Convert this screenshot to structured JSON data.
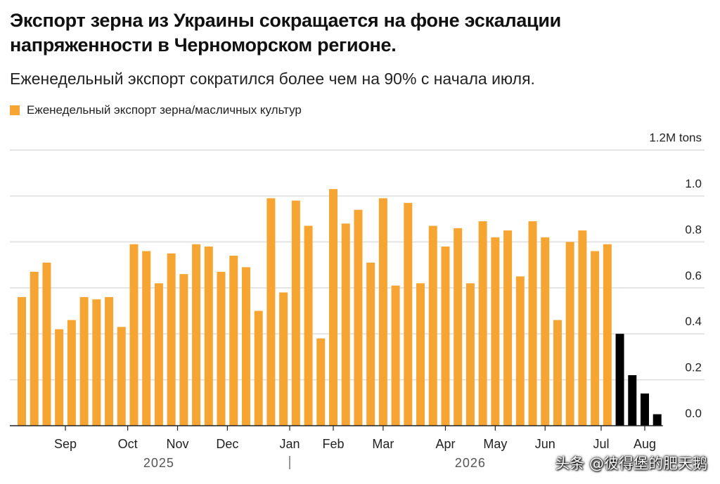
{
  "title": "Экспорт зерна из Украины сокращается на фоне эскалации напряженности в Черноморском регионе.",
  "subtitle": "Еженедельный экспорт сократился более чем на 90% с начала июля.",
  "colors": {
    "orange": "#f7a532",
    "black": "#000000",
    "grid": "#dddddd",
    "axis": "#222222"
  },
  "watermark": "头条 @彼得堡的肥天鹅",
  "chart_data": {
    "type": "bar",
    "legend": [
      {
        "label": "Еженедельный экспорт зерна/масличных культур",
        "color": "#f7a532"
      }
    ],
    "legend_position": "top-left",
    "y_unit_label": "1.2M tons",
    "ylim": [
      0,
      1.2
    ],
    "yticks": [
      {
        "value": 0.2,
        "label": "0.2"
      },
      {
        "value": 0.4,
        "label": "0.4"
      },
      {
        "value": 0.6,
        "label": "0.6"
      },
      {
        "value": 0.8,
        "label": "0.8"
      },
      {
        "value": 1.0,
        "label": "1.0"
      },
      {
        "value": 1.2,
        "label": "1.2M tons"
      }
    ],
    "zero_label": "0.0",
    "grid": true,
    "series": [
      {
        "color": "#f7a532",
        "values": [
          0.56,
          0.67,
          0.71,
          0.42,
          0.46,
          0.56,
          0.55,
          0.56,
          0.43,
          0.79,
          0.76,
          0.62,
          0.75,
          0.66,
          0.79,
          0.78,
          0.67,
          0.74,
          0.69,
          0.5,
          0.99,
          0.58,
          0.98,
          0.87,
          0.38,
          1.03,
          0.88,
          0.94,
          0.71,
          0.99,
          0.61,
          0.97,
          0.62,
          0.87,
          0.78,
          0.86,
          0.62,
          0.89,
          0.82,
          0.85,
          0.65,
          0.89,
          0.82,
          0.46,
          0.8,
          0.85,
          0.76,
          0.79
        ]
      },
      {
        "color": "#000000",
        "values": [
          0.4,
          0.22,
          0.14,
          0.05
        ]
      }
    ],
    "x_month_labels": [
      {
        "label": "Sep",
        "bar_index": 3.5
      },
      {
        "label": "Oct",
        "bar_index": 8.5
      },
      {
        "label": "Nov",
        "bar_index": 12.5
      },
      {
        "label": "Dec",
        "bar_index": 16.5
      },
      {
        "label": "Jan",
        "bar_index": 21.5
      },
      {
        "label": "Feb",
        "bar_index": 25
      },
      {
        "label": "Mar",
        "bar_index": 29
      },
      {
        "label": "Apr",
        "bar_index": 34
      },
      {
        "label": "May",
        "bar_index": 38
      },
      {
        "label": "Jun",
        "bar_index": 42
      },
      {
        "label": "Jul",
        "bar_index": 46.5
      },
      {
        "label": "Aug",
        "bar_index": 50
      }
    ],
    "x_year_labels": [
      {
        "label": "2025",
        "bar_index": 11
      },
      {
        "label": "2026",
        "bar_index": 36
      }
    ],
    "year_divider_bar_index": 21.5
  }
}
